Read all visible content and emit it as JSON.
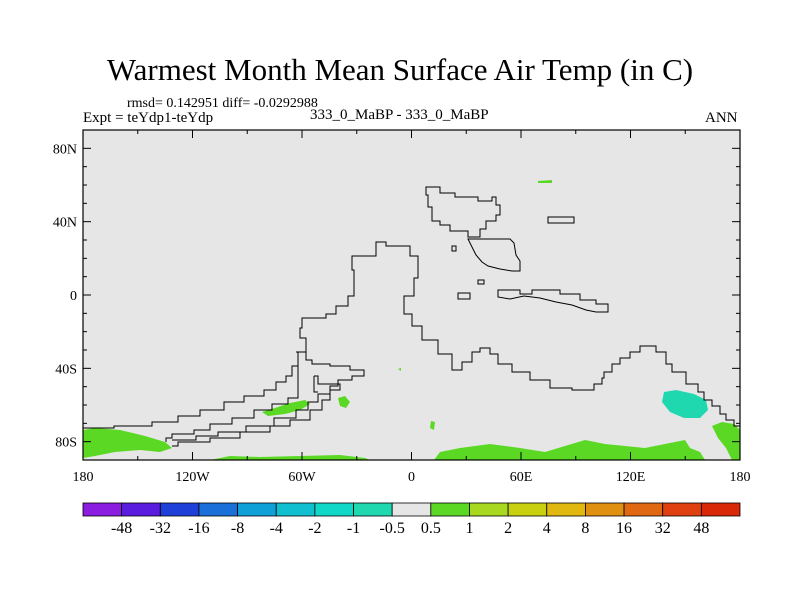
{
  "header": {
    "title": "Warmest Month Mean Surface Air Temp (in C)",
    "stats": "rmsd= 0.142951 diff= -0.0292988",
    "experiment": "Expt = teYdp1-teYdp",
    "comparison": "333_0_MaBP - 333_0_MaBP",
    "season": "ANN"
  },
  "chart_data": {
    "type": "heatmap",
    "title": "Warmest Month Mean Surface Air Temp (in C)",
    "subtitle": "333_0_MaBP - 333_0_MaBP",
    "xlim": [
      -180,
      180
    ],
    "ylim": [
      -90,
      90
    ],
    "x_ticks": [
      {
        "value": -180,
        "label": "180"
      },
      {
        "value": -120,
        "label": "120W"
      },
      {
        "value": -60,
        "label": "60W"
      },
      {
        "value": 0,
        "label": "0"
      },
      {
        "value": 60,
        "label": "60E"
      },
      {
        "value": 120,
        "label": "120E"
      },
      {
        "value": 180,
        "label": "180"
      }
    ],
    "y_ticks": [
      {
        "value": 80,
        "label": "80N"
      },
      {
        "value": 40,
        "label": "40N"
      },
      {
        "value": 0,
        "label": "0"
      },
      {
        "value": -40,
        "label": "40S"
      },
      {
        "value": -80,
        "label": "80S"
      }
    ],
    "background_color": "#e6e6e6",
    "colorbar": {
      "levels": [
        "-48",
        "-32",
        "-16",
        "-8",
        "-4",
        "-2",
        "-1",
        "-0.5",
        "0.5",
        "1",
        "2",
        "4",
        "8",
        "16",
        "32",
        "48"
      ],
      "colors": [
        "#8a1de0",
        "#5a1de0",
        "#1e40d8",
        "#1a70d8",
        "#10a0d8",
        "#10c0d0",
        "#10d8c8",
        "#20d8b0",
        "#e6e6e6",
        "#5ad824",
        "#a8d820",
        "#c8d010",
        "#e0b810",
        "#e09010",
        "#e06810",
        "#e04010",
        "#d82808"
      ]
    }
  }
}
